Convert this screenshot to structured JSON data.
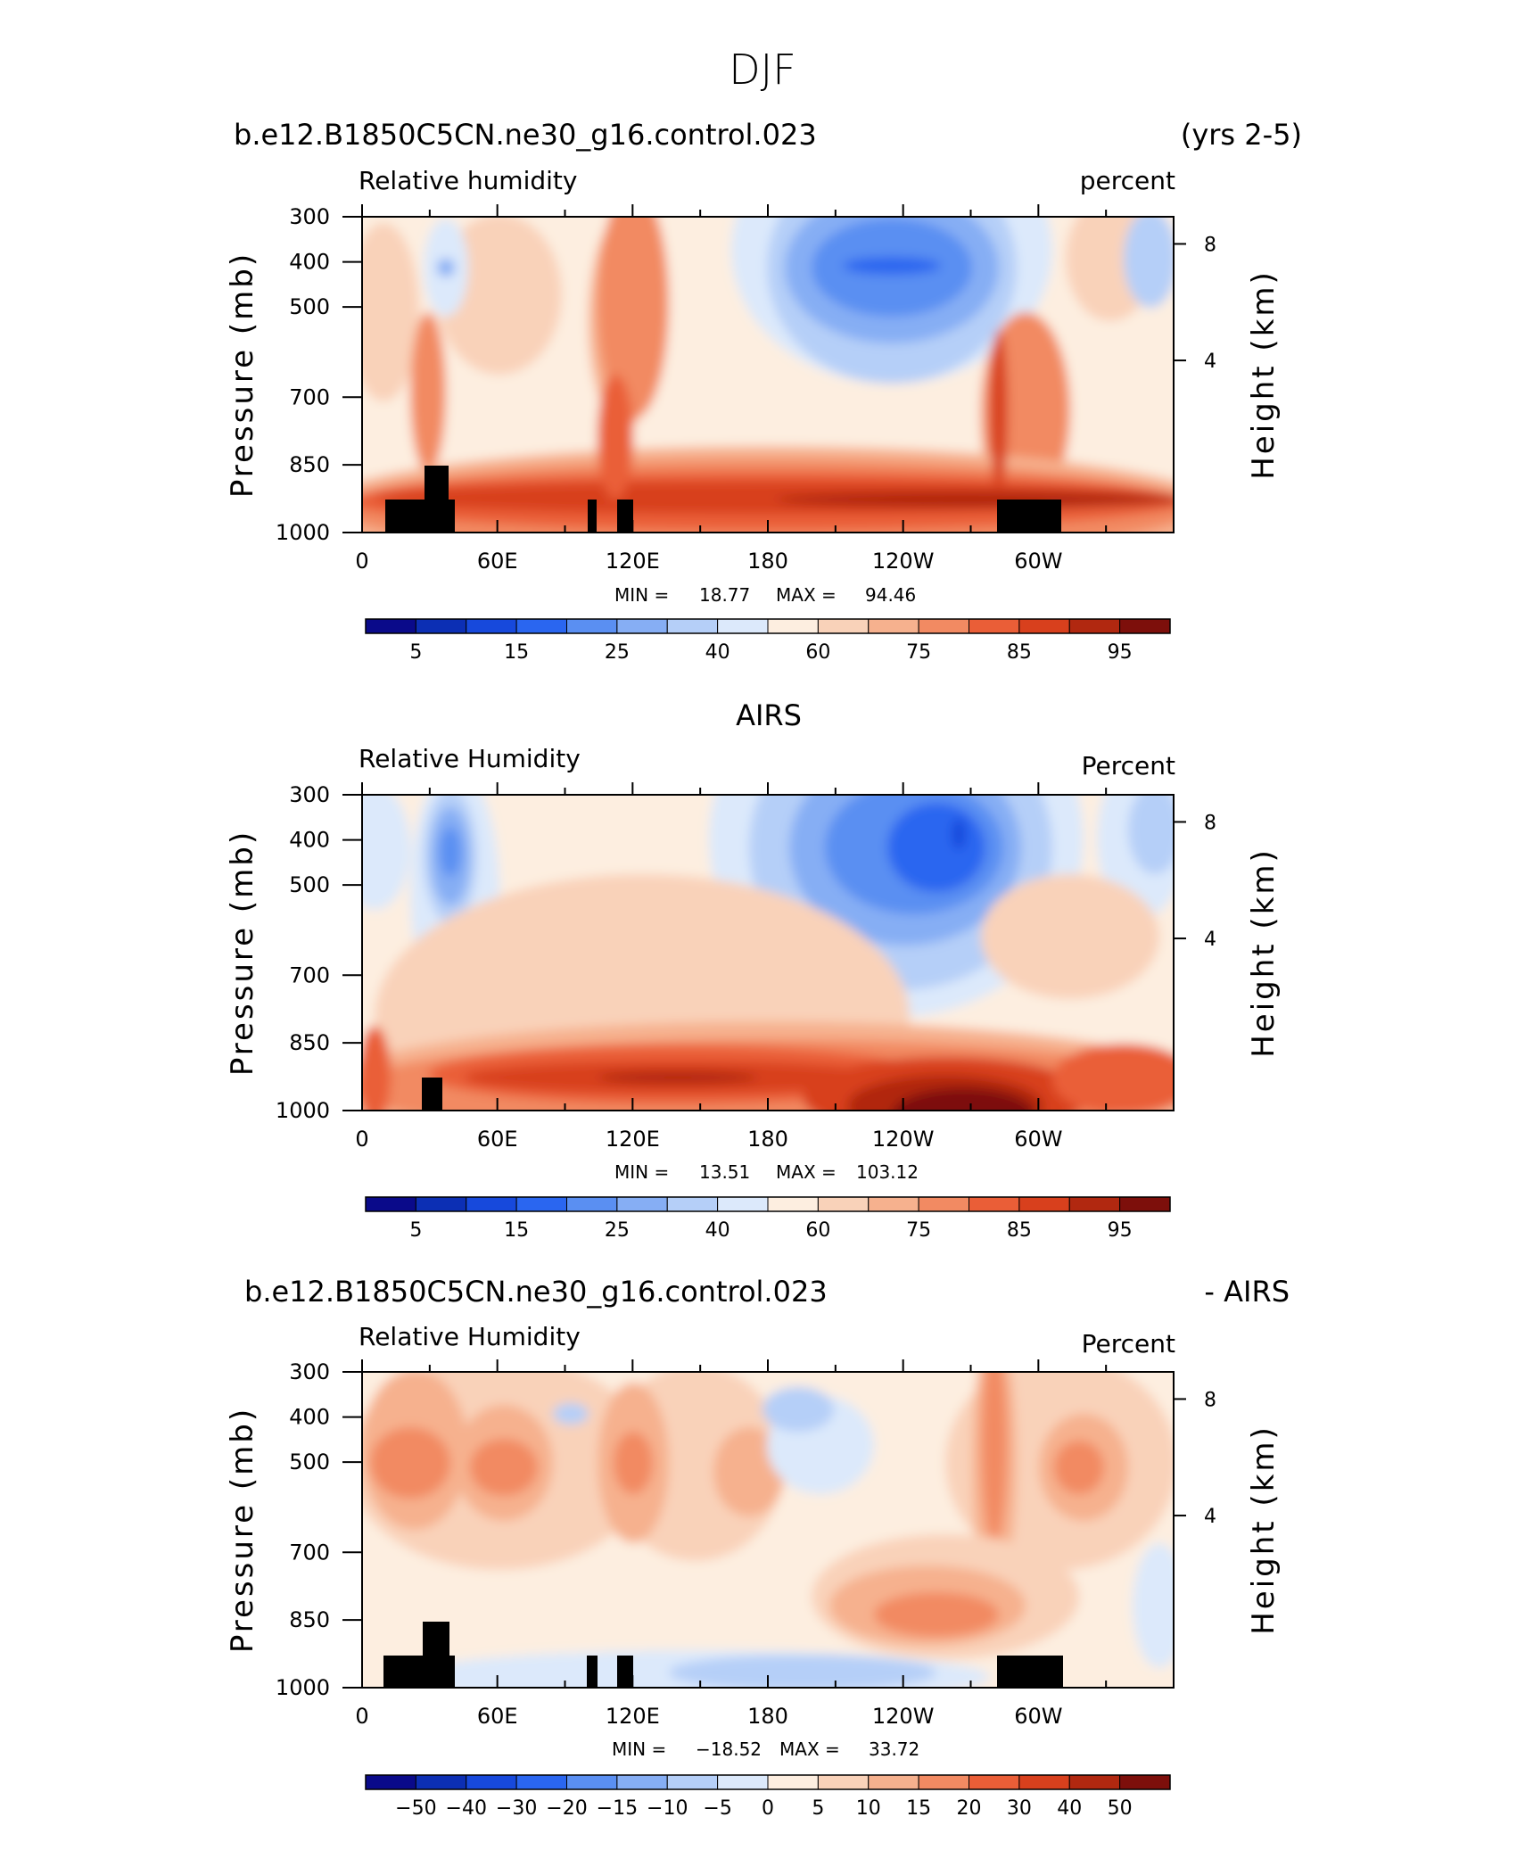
{
  "figure": {
    "title": "DJF"
  },
  "colors": {
    "cmap": [
      "#0a0a8a",
      "#0c2fb4",
      "#1749dc",
      "#2a66f0",
      "#5a8ff2",
      "#86aef4",
      "#b5cff8",
      "#dce9fb",
      "#fdeee0",
      "#f9d2b9",
      "#f6b18e",
      "#f28a62",
      "#ea5e37",
      "#d8401d",
      "#b12810",
      "#7d0f0b"
    ],
    "land": "#000000"
  },
  "chart_data": [
    {
      "type": "heatmap",
      "header_left": "b.e12.B1850C5CN.ne30_g16.control.023",
      "header_right": "(yrs 2-5)",
      "variable": "Relative humidity",
      "units": "percent",
      "ylabel": "Pressure (mb)",
      "y2label": "Height (km)",
      "x_ticks": [
        "0",
        "60E",
        "120E",
        "180",
        "120W",
        "60W"
      ],
      "y_ticks": [
        "300",
        "400",
        "500",
        "700",
        "850",
        "1000"
      ],
      "y2_ticks": [
        "8",
        "4"
      ],
      "min_label": "MIN =",
      "min_value": "18.77",
      "max_label": "MAX =",
      "max_value": "94.46",
      "colorbar_labels": [
        "5",
        "15",
        "25",
        "40",
        "60",
        "75",
        "85",
        "95"
      ]
    },
    {
      "type": "heatmap",
      "header_center": "AIRS",
      "variable": "Relative Humidity",
      "units": "Percent",
      "ylabel": "Pressure (mb)",
      "y2label": "Height (km)",
      "x_ticks": [
        "0",
        "60E",
        "120E",
        "180",
        "120W",
        "60W"
      ],
      "y_ticks": [
        "300",
        "400",
        "500",
        "700",
        "850",
        "1000"
      ],
      "y2_ticks": [
        "8",
        "4"
      ],
      "min_label": "MIN =",
      "min_value": "13.51",
      "max_label": "MAX =",
      "max_value": "103.12",
      "colorbar_labels": [
        "5",
        "15",
        "25",
        "40",
        "60",
        "75",
        "85",
        "95"
      ]
    },
    {
      "type": "heatmap",
      "header_left": "b.e12.B1850C5CN.ne30_g16.control.023",
      "header_right": "- AIRS",
      "variable": "Relative Humidity",
      "units": "Percent",
      "ylabel": "Pressure (mb)",
      "y2label": "Height (km)",
      "x_ticks": [
        "0",
        "60E",
        "120E",
        "180",
        "120W",
        "60W"
      ],
      "y_ticks": [
        "300",
        "400",
        "500",
        "700",
        "850",
        "1000"
      ],
      "y2_ticks": [
        "8",
        "4"
      ],
      "min_label": "MIN =",
      "min_value": "−18.52",
      "max_label": "MAX =",
      "max_value": "33.72",
      "colorbar_labels": [
        "−50",
        "−40",
        "−30",
        "−20",
        "−15",
        "−10",
        "−5",
        "0",
        "5",
        "10",
        "15",
        "20",
        "30",
        "40",
        "50"
      ]
    }
  ]
}
